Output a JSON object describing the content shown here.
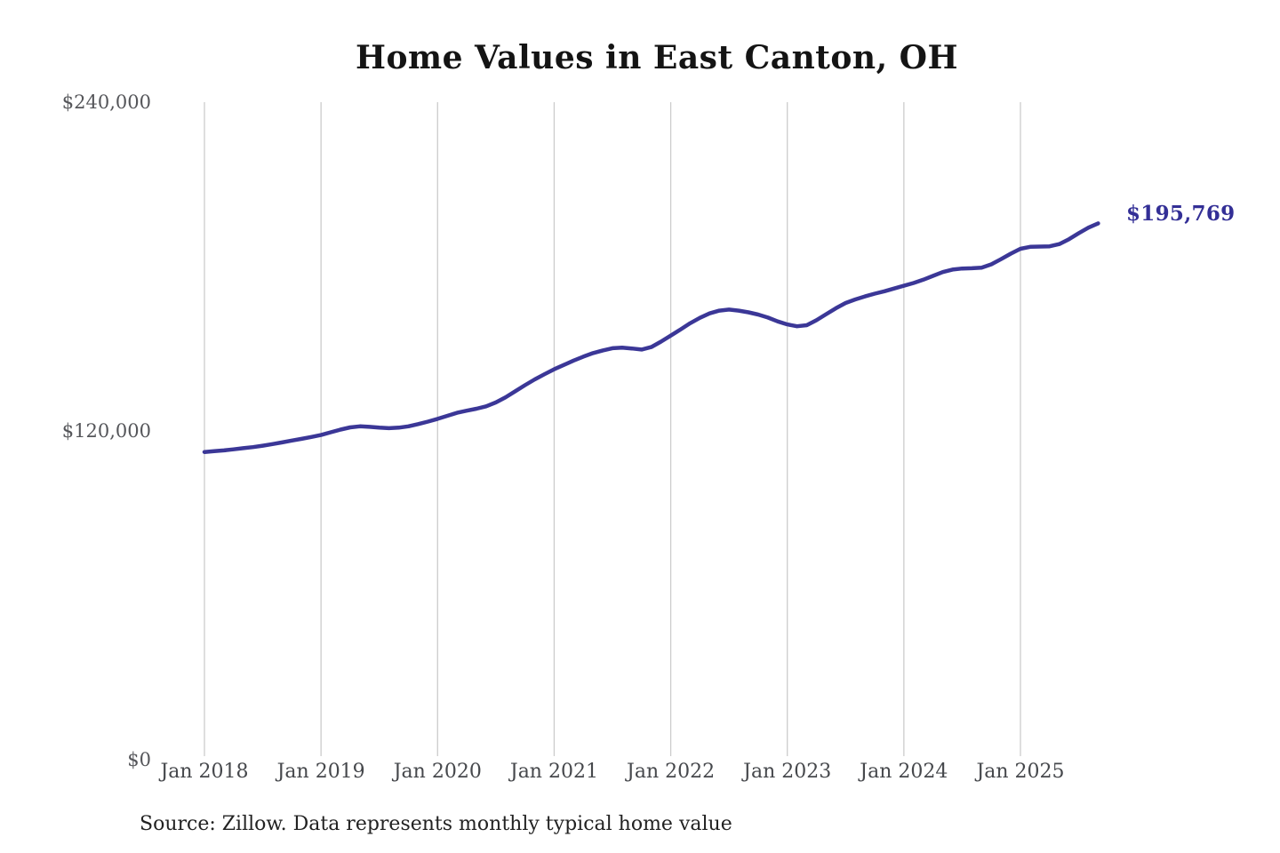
{
  "title": "Home Values in East Canton, OH",
  "end_label": "$195,769",
  "source_note": "Source: Zillow. Data represents monthly typical home value",
  "colors": {
    "line": "#3b3797",
    "end_label": "#332f96",
    "gridline": "#cccccc",
    "title": "#141414",
    "y_tick": "#55565a",
    "x_tick": "#46484c",
    "source": "#222222",
    "background": "#ffffff"
  },
  "y_axis": {
    "ticks": [
      {
        "label": "$240,000",
        "value": 240000
      },
      {
        "label": "$120,000",
        "value": 120000
      },
      {
        "label": "$0",
        "value": 0
      }
    ]
  },
  "x_axis": {
    "ticks": [
      {
        "label": "Jan 2018",
        "month_index": 0
      },
      {
        "label": "Jan 2019",
        "month_index": 12
      },
      {
        "label": "Jan 2020",
        "month_index": 24
      },
      {
        "label": "Jan 2021",
        "month_index": 36
      },
      {
        "label": "Jan 2022",
        "month_index": 48
      },
      {
        "label": "Jan 2023",
        "month_index": 60
      },
      {
        "label": "Jan 2024",
        "month_index": 72
      },
      {
        "label": "Jan 2025",
        "month_index": 84
      }
    ]
  },
  "chart_data": {
    "type": "line",
    "title": "Home Values in East Canton, OH",
    "xlabel": "",
    "ylabel": "",
    "ylim": [
      0,
      240000
    ],
    "grid": "vertical-yearly",
    "legend": "none",
    "final_value_label": "$195,769",
    "x": [
      "Jan 2018",
      "Feb 2018",
      "Mar 2018",
      "Apr 2018",
      "May 2018",
      "Jun 2018",
      "Jul 2018",
      "Aug 2018",
      "Sep 2018",
      "Oct 2018",
      "Nov 2018",
      "Dec 2018",
      "Jan 2019",
      "Feb 2019",
      "Mar 2019",
      "Apr 2019",
      "May 2019",
      "Jun 2019",
      "Jul 2019",
      "Aug 2019",
      "Sep 2019",
      "Oct 2019",
      "Nov 2019",
      "Dec 2019",
      "Jan 2020",
      "Feb 2020",
      "Mar 2020",
      "Apr 2020",
      "May 2020",
      "Jun 2020",
      "Jul 2020",
      "Aug 2020",
      "Sep 2020",
      "Oct 2020",
      "Nov 2020",
      "Dec 2020",
      "Jan 2021",
      "Feb 2021",
      "Mar 2021",
      "Apr 2021",
      "May 2021",
      "Jun 2021",
      "Jul 2021",
      "Aug 2021",
      "Sep 2021",
      "Oct 2021",
      "Nov 2021",
      "Dec 2021",
      "Jan 2022",
      "Feb 2022",
      "Mar 2022",
      "Apr 2022",
      "May 2022",
      "Jun 2022",
      "Jul 2022",
      "Aug 2022",
      "Sep 2022",
      "Oct 2022",
      "Nov 2022",
      "Dec 2022",
      "Jan 2023",
      "Feb 2023",
      "Mar 2023",
      "Apr 2023",
      "May 2023",
      "Jun 2023",
      "Jul 2023",
      "Aug 2023",
      "Sep 2023",
      "Oct 2023",
      "Nov 2023",
      "Dec 2023",
      "Jan 2024",
      "Feb 2024",
      "Mar 2024",
      "Apr 2024",
      "May 2024",
      "Jun 2024",
      "Jul 2024",
      "Aug 2024",
      "Sep 2024",
      "Oct 2024",
      "Nov 2024",
      "Dec 2024",
      "Jan 2025",
      "Feb 2025",
      "Mar 2025",
      "Apr 2025",
      "May 2025",
      "Jun 2025",
      "Jul 2025",
      "Aug 2025",
      "Sep 2025"
    ],
    "values": [
      112300,
      112600,
      112900,
      113300,
      113700,
      114100,
      114600,
      115200,
      115800,
      116500,
      117100,
      117800,
      118500,
      119500,
      120500,
      121300,
      121700,
      121500,
      121200,
      121000,
      121200,
      121700,
      122500,
      123400,
      124400,
      125500,
      126600,
      127400,
      128100,
      129000,
      130400,
      132300,
      134500,
      136700,
      138800,
      140700,
      142500,
      144100,
      145700,
      147100,
      148400,
      149400,
      150200,
      150400,
      150100,
      149700,
      150600,
      152600,
      154800,
      157000,
      159300,
      161300,
      162900,
      163900,
      164300,
      163900,
      163300,
      162500,
      161400,
      160000,
      158900,
      158200,
      158600,
      160400,
      162600,
      164800,
      166700,
      168000,
      169100,
      170100,
      171000,
      172000,
      173000,
      174000,
      175200,
      176600,
      178000,
      178900,
      179300,
      179400,
      179600,
      180800,
      182700,
      184700,
      186500,
      187200,
      187300,
      187400,
      188200,
      190000,
      192200,
      194200,
      195769
    ]
  }
}
